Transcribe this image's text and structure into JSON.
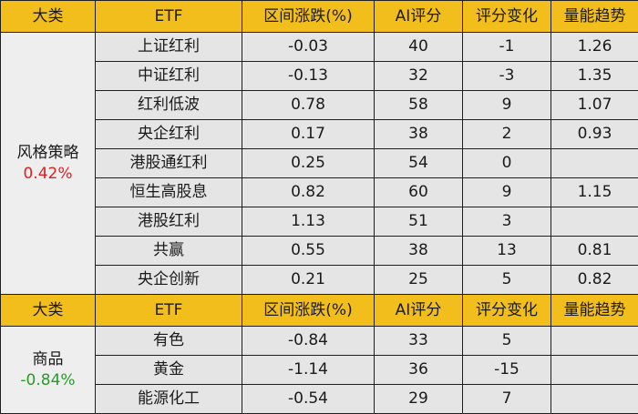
{
  "colors": {
    "header_bg": "#f2be1b",
    "up": "#e02020",
    "down": "#2a9a2a",
    "row_bg": "#e5e5e5"
  },
  "headers": [
    "大类",
    "ETF",
    "区间涨跌(%)",
    "AI评分",
    "评分变化",
    "量能趋势"
  ],
  "sections": [
    {
      "category": "风格策略",
      "category_return": "0.42%",
      "category_dir": "up",
      "rows": [
        {
          "etf": "上证红利",
          "change": "-0.03",
          "change_dir": "down",
          "ai_score": "40",
          "score_change": "-1",
          "score_change_dir": "down",
          "volume_trend": "1.26",
          "volume_dir": "up"
        },
        {
          "etf": "中证红利",
          "change": "-0.13",
          "change_dir": "down",
          "ai_score": "32",
          "score_change": "-3",
          "score_change_dir": "down",
          "volume_trend": "1.35",
          "volume_dir": "up"
        },
        {
          "etf": "红利低波",
          "change": "0.78",
          "change_dir": "up",
          "ai_score": "58",
          "score_change": "9",
          "score_change_dir": "up",
          "volume_trend": "1.07",
          "volume_dir": "up"
        },
        {
          "etf": "央企红利",
          "change": "0.17",
          "change_dir": "up",
          "ai_score": "38",
          "score_change": "2",
          "score_change_dir": "up",
          "volume_trend": "0.93",
          "volume_dir": "down"
        },
        {
          "etf": "港股通红利",
          "change": "0.25",
          "change_dir": "up",
          "ai_score": "54",
          "score_change": "0",
          "score_change_dir": "flat",
          "volume_trend": "",
          "volume_dir": "flat"
        },
        {
          "etf": "恒生高股息",
          "change": "0.82",
          "change_dir": "up",
          "ai_score": "60",
          "score_change": "9",
          "score_change_dir": "up",
          "volume_trend": "1.15",
          "volume_dir": "up"
        },
        {
          "etf": "港股红利",
          "change": "1.13",
          "change_dir": "up",
          "ai_score": "51",
          "score_change": "3",
          "score_change_dir": "up",
          "volume_trend": "",
          "volume_dir": "flat"
        },
        {
          "etf": "共赢",
          "change": "0.55",
          "change_dir": "up",
          "ai_score": "38",
          "score_change": "13",
          "score_change_dir": "up",
          "volume_trend": "0.81",
          "volume_dir": "down"
        },
        {
          "etf": "央企创新",
          "change": "0.21",
          "change_dir": "up",
          "ai_score": "25",
          "score_change": "5",
          "score_change_dir": "up",
          "volume_trend": "0.82",
          "volume_dir": "down"
        }
      ]
    },
    {
      "category": "商品",
      "category_return": "-0.84%",
      "category_dir": "down",
      "rows": [
        {
          "etf": "有色",
          "change": "-0.84",
          "change_dir": "down",
          "ai_score": "33",
          "score_change": "5",
          "score_change_dir": "up",
          "volume_trend": "",
          "volume_dir": "flat"
        },
        {
          "etf": "黄金",
          "change": "-1.14",
          "change_dir": "down",
          "ai_score": "36",
          "score_change": "-15",
          "score_change_dir": "down",
          "volume_trend": "",
          "volume_dir": "flat"
        },
        {
          "etf": "能源化工",
          "change": "-0.54",
          "change_dir": "down",
          "ai_score": "29",
          "score_change": "7",
          "score_change_dir": "up",
          "volume_trend": "",
          "volume_dir": "flat"
        }
      ]
    }
  ]
}
